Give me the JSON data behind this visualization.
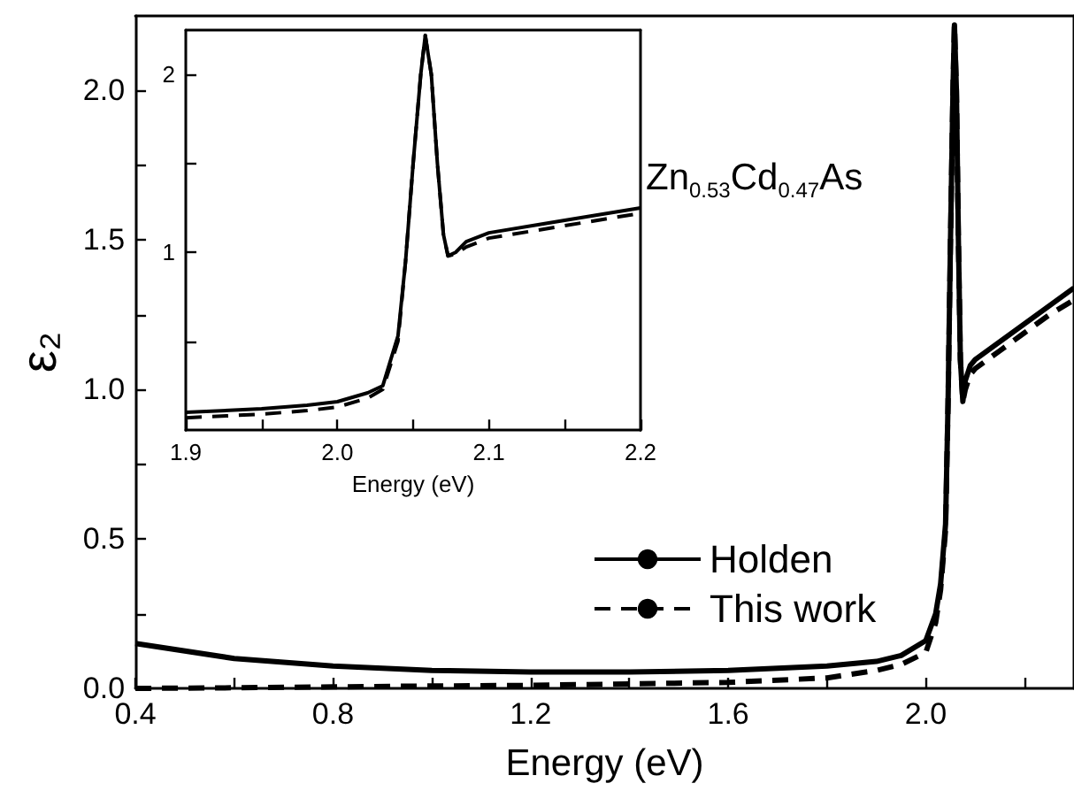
{
  "chart_data": [
    {
      "type": "line",
      "xlabel": "Energy (eV)",
      "ylabel": "ε₂",
      "annotations": [
        "Zn$_{0.53}$Cd$_{0.47}$As"
      ],
      "legend": "bottom",
      "marker": "none",
      "grid": false,
      "xlim": [
        0.4,
        2.3
      ],
      "xticks": [
        0.4,
        {
          "value": 0.6,
          "label": null
        },
        0.8,
        {
          "value": 1.0,
          "label": null
        },
        1.2,
        {
          "value": 1.4,
          "label": null
        },
        1.6,
        {
          "value": 1.8,
          "label": null
        },
        {
          "value": 2,
          "label": "2.0"
        },
        {
          "value": 2.2,
          "label": null
        }
      ],
      "ylim": [
        0,
        2.25
      ],
      "yticks": [
        {
          "value": 0,
          "label": "0.0"
        },
        {
          "value": 0.25,
          "label": null
        },
        0.5,
        {
          "value": 0.75,
          "label": null
        },
        {
          "value": 1,
          "label": "1.0"
        },
        {
          "value": 1.25,
          "label": null
        },
        1.5,
        {
          "value": 1.75,
          "label": null
        },
        {
          "value": 2,
          "label": "2.0"
        }
      ],
      "series": [
        {
          "name": "Holden",
          "color": "#000000",
          "line_style": "solid",
          "x": [
            0.4,
            0.6,
            0.8,
            1.0,
            1.2,
            1.4,
            1.6,
            1.8,
            1.9,
            1.95,
            2.0,
            2.02,
            2.03,
            2.04,
            2.045,
            2.05,
            2.055,
            2.058,
            2.062,
            2.066,
            2.07,
            2.075,
            2.08,
            2.09,
            2.1,
            2.15,
            2.2,
            2.25,
            2.3
          ],
          "values": [
            0.15,
            0.1,
            0.075,
            0.06,
            0.055,
            0.055,
            0.06,
            0.075,
            0.09,
            0.11,
            0.16,
            0.25,
            0.35,
            0.55,
            0.95,
            1.5,
            2.0,
            2.22,
            2.0,
            1.5,
            1.1,
            0.96,
            1.03,
            1.08,
            1.1,
            1.16,
            1.22,
            1.28,
            1.34
          ]
        },
        {
          "name": "This work",
          "color": "#000000",
          "line_style": "dashed",
          "x": [
            0.4,
            0.6,
            0.8,
            1.0,
            1.2,
            1.4,
            1.6,
            1.8,
            1.9,
            1.95,
            2.0,
            2.02,
            2.03,
            2.04,
            2.045,
            2.05,
            2.055,
            2.058,
            2.062,
            2.066,
            2.07,
            2.075,
            2.08,
            2.09,
            2.1,
            2.15,
            2.2,
            2.25,
            2.3
          ],
          "values": [
            0.0,
            0.002,
            0.005,
            0.008,
            0.01,
            0.015,
            0.02,
            0.035,
            0.06,
            0.08,
            0.12,
            0.22,
            0.33,
            0.53,
            0.95,
            1.5,
            2.0,
            2.22,
            2.0,
            1.5,
            1.1,
            0.96,
            1.0,
            1.05,
            1.07,
            1.13,
            1.19,
            1.25,
            1.3
          ]
        }
      ]
    },
    {
      "type": "line",
      "xlabel": "Energy (eV)",
      "marker": "none",
      "grid": false,
      "xlim": [
        1.9,
        2.2
      ],
      "xticks": [
        1.9,
        {
          "value": 1.95,
          "label": null
        },
        {
          "value": 2,
          "label": "2.0"
        },
        {
          "value": 2.05,
          "label": null
        },
        2.1,
        {
          "value": 2.15,
          "label": null
        },
        2.2
      ],
      "ylim": [
        0,
        2.25
      ],
      "yticks": [
        {
          "value": 0.5,
          "label": null
        },
        1,
        {
          "value": 1.5,
          "label": null
        },
        2
      ],
      "series": [
        {
          "color": "#000000",
          "line_style": "solid",
          "x": [
            1.9,
            1.95,
            1.98,
            2.0,
            2.02,
            2.03,
            2.04,
            2.045,
            2.05,
            2.055,
            2.058,
            2.062,
            2.066,
            2.07,
            2.073,
            2.078,
            2.085,
            2.1,
            2.15,
            2.2
          ],
          "values": [
            0.1,
            0.12,
            0.14,
            0.16,
            0.21,
            0.25,
            0.53,
            0.95,
            1.5,
            2.0,
            2.22,
            2.0,
            1.5,
            1.1,
            0.98,
            1.0,
            1.06,
            1.11,
            1.18,
            1.25
          ]
        },
        {
          "color": "#000000",
          "line_style": "dashed",
          "x": [
            1.9,
            1.95,
            1.98,
            2.0,
            2.02,
            2.03,
            2.04,
            2.045,
            2.05,
            2.055,
            2.058,
            2.062,
            2.066,
            2.07,
            2.073,
            2.078,
            2.085,
            2.1,
            2.15,
            2.2
          ],
          "values": [
            0.07,
            0.09,
            0.11,
            0.13,
            0.18,
            0.23,
            0.5,
            0.95,
            1.5,
            2.0,
            2.22,
            2.0,
            1.5,
            1.1,
            0.98,
            0.99,
            1.03,
            1.08,
            1.15,
            1.22
          ]
        }
      ]
    }
  ]
}
